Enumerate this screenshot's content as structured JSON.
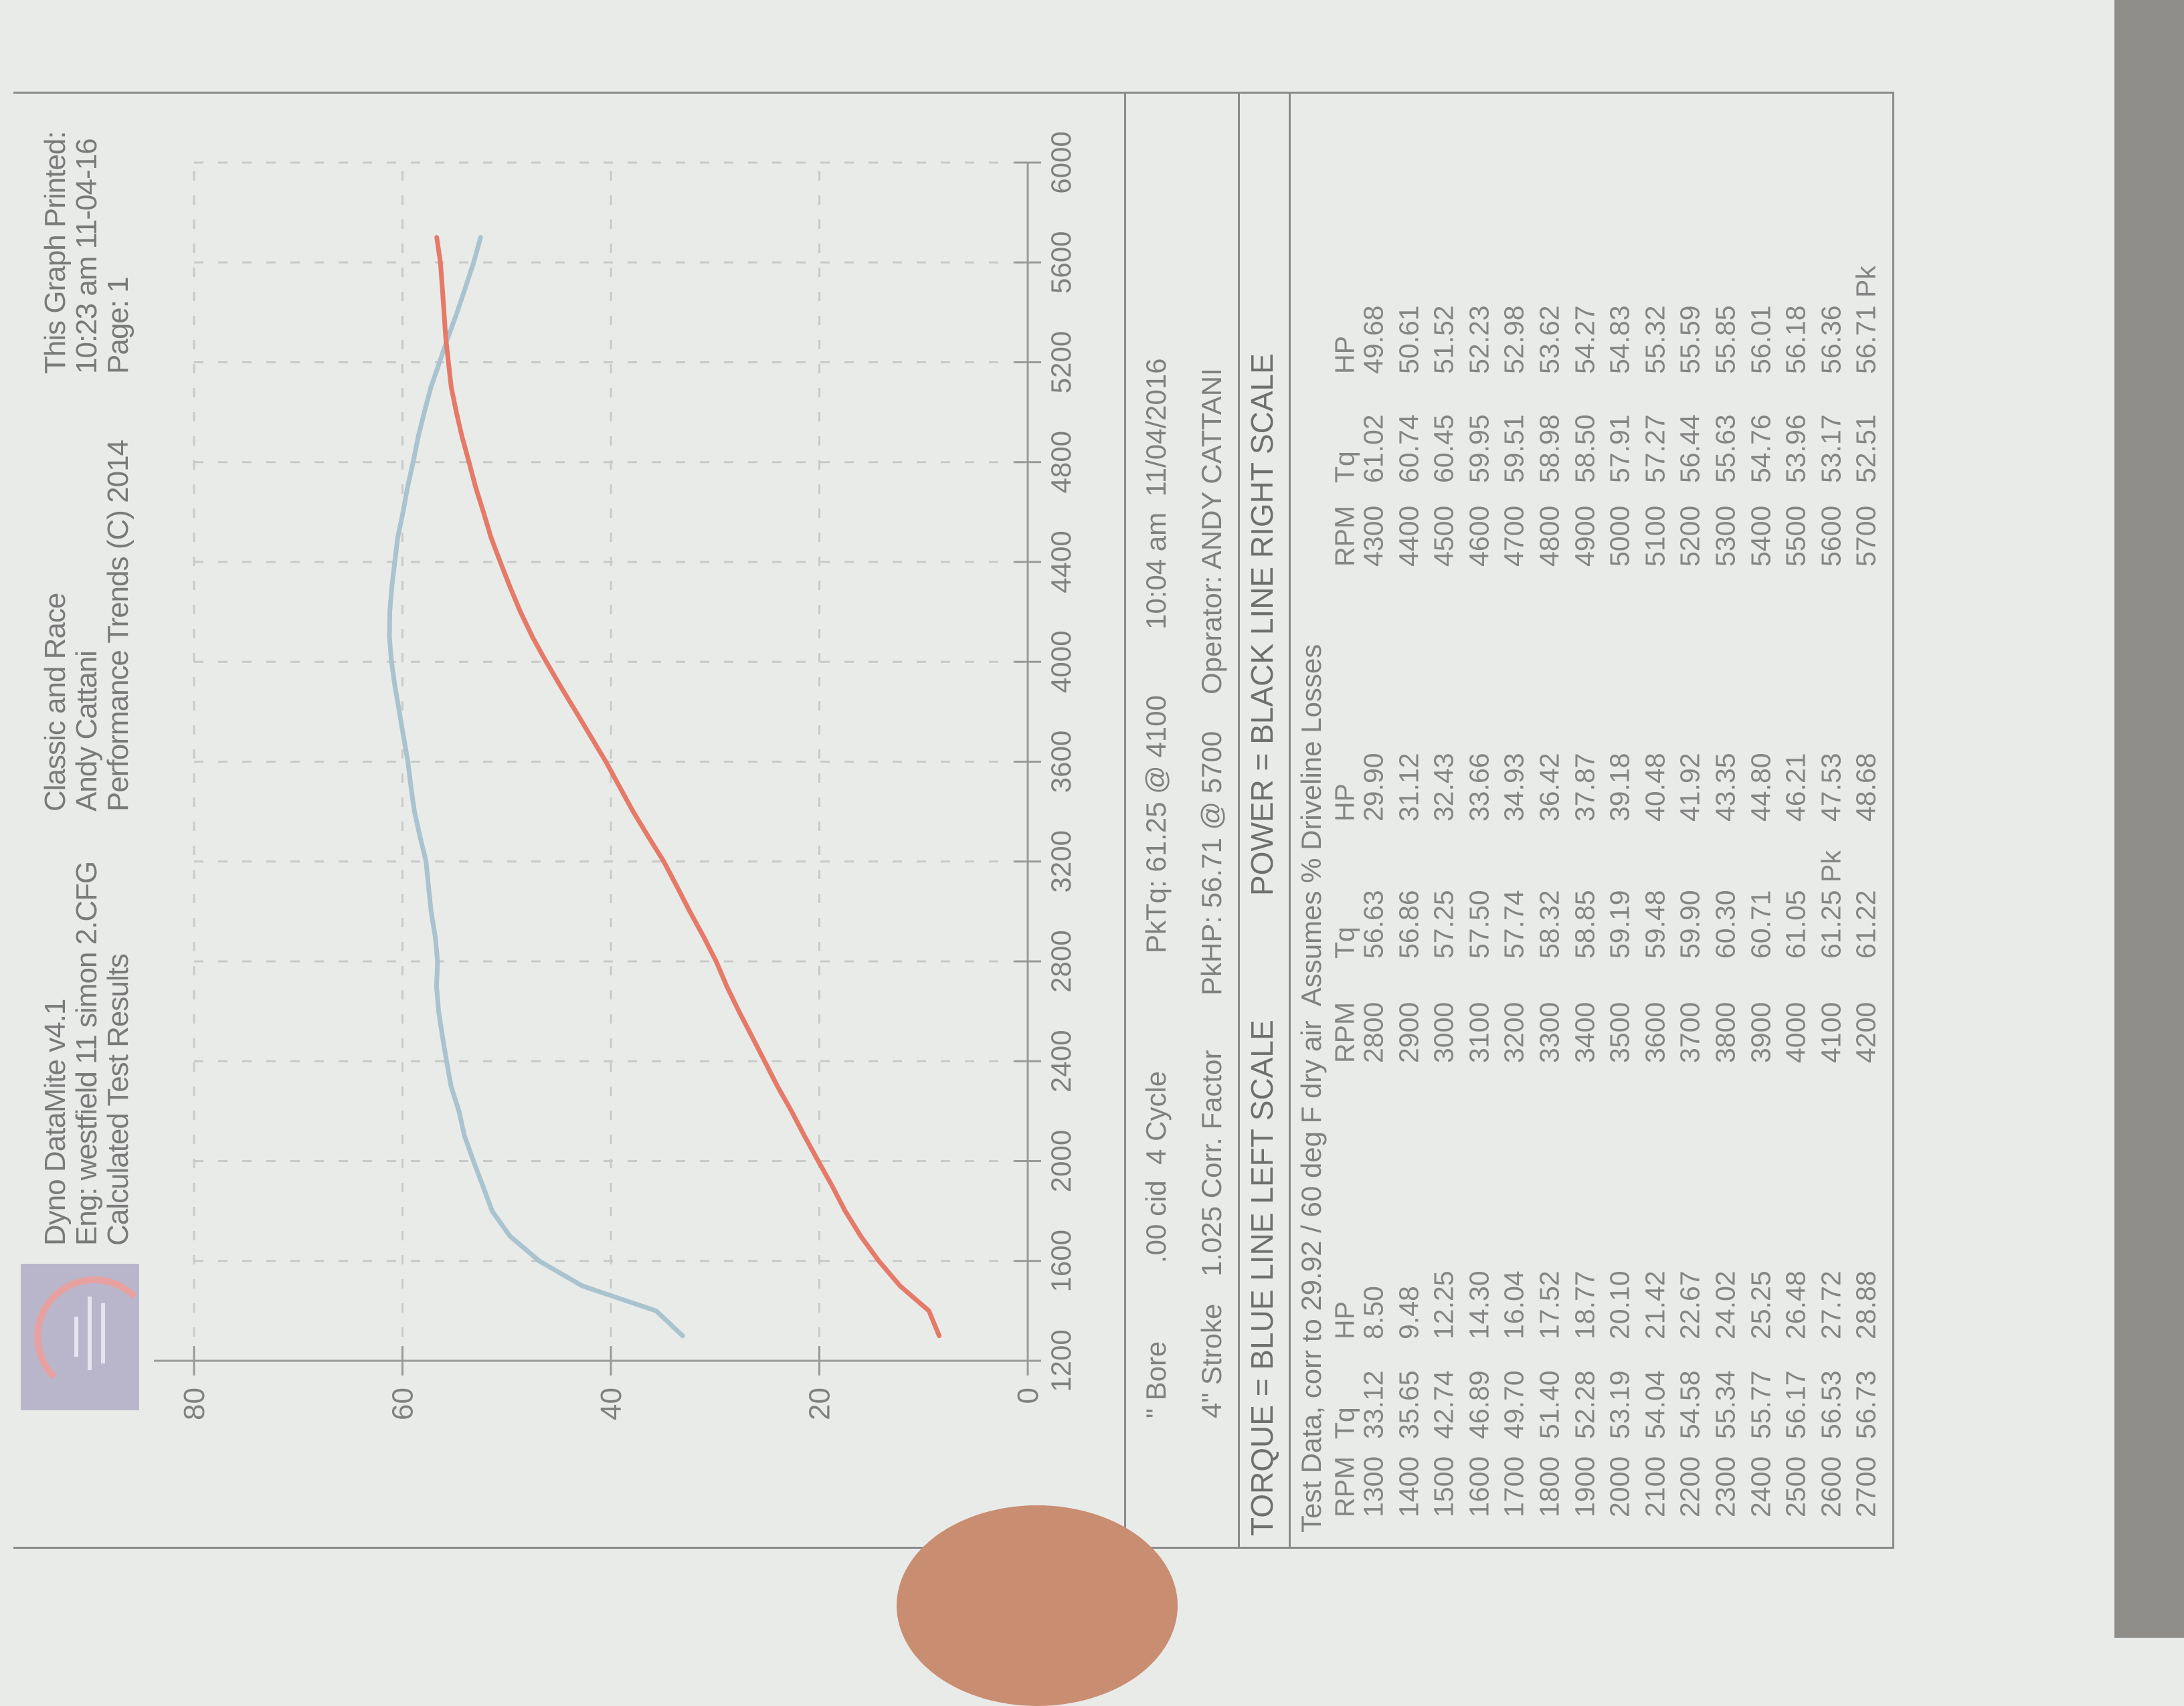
{
  "header": {
    "col1": [
      "Dyno DataMite v4.1",
      "Eng: westfield 11 simon 2.CFG",
      "Calculated Test Results"
    ],
    "col2": [
      "Classic and Race",
      "Andy Cattani",
      "Performance Trends (C) 2014"
    ],
    "col3": [
      "This Graph Printed:",
      "10:23 am 11-04-16",
      "Page: 1"
    ]
  },
  "info": {
    "bore": "\" Bore",
    "cid": ".00 cid  4 Cycle",
    "pktq": "PkTq: 61.25 @ 4100",
    "datetime": "10:04 am  11/04/2016",
    "stroke": "4\" Stroke",
    "corr": "1.025 Corr. Factor",
    "pkhp": "PkHP: 56.71 @ 5700",
    "operator": "Operator: ANDY CATTANI",
    "torque_legend": "TORQUE = BLUE LINE LEFT SCALE",
    "power_legend": "POWER = BLACK LINE RIGHT SCALE",
    "test_note": "Test Data, corr to 29.92 / 60 deg F dry air  Assumes % Driveline Losses"
  },
  "table": {
    "headers": [
      "RPM",
      "Tq",
      "HP"
    ],
    "rows": [
      [
        "1300",
        "33.12",
        "8.50",
        ""
      ],
      [
        "1400",
        "35.65",
        "9.48",
        ""
      ],
      [
        "1500",
        "42.74",
        "12.25",
        ""
      ],
      [
        "1600",
        "46.89",
        "14.30",
        ""
      ],
      [
        "1700",
        "49.70",
        "16.04",
        ""
      ],
      [
        "1800",
        "51.40",
        "17.52",
        ""
      ],
      [
        "1900",
        "52.28",
        "18.77",
        ""
      ],
      [
        "2000",
        "53.19",
        "20.10",
        ""
      ],
      [
        "2100",
        "54.04",
        "21.42",
        ""
      ],
      [
        "2200",
        "54.58",
        "22.67",
        ""
      ],
      [
        "2300",
        "55.34",
        "24.02",
        ""
      ],
      [
        "2400",
        "55.77",
        "25.25",
        ""
      ],
      [
        "2500",
        "56.17",
        "26.48",
        ""
      ],
      [
        "2600",
        "56.53",
        "27.72",
        ""
      ],
      [
        "2700",
        "56.73",
        "28.88",
        ""
      ],
      [
        "2800",
        "56.63",
        "29.90",
        ""
      ],
      [
        "2900",
        "56.86",
        "31.12",
        ""
      ],
      [
        "3000",
        "57.25",
        "32.43",
        ""
      ],
      [
        "3100",
        "57.50",
        "33.66",
        ""
      ],
      [
        "3200",
        "57.74",
        "34.93",
        ""
      ],
      [
        "3300",
        "58.32",
        "36.42",
        ""
      ],
      [
        "3400",
        "58.85",
        "37.87",
        ""
      ],
      [
        "3500",
        "59.19",
        "39.18",
        ""
      ],
      [
        "3600",
        "59.48",
        "40.48",
        ""
      ],
      [
        "3700",
        "59.90",
        "41.92",
        ""
      ],
      [
        "3800",
        "60.30",
        "43.35",
        ""
      ],
      [
        "3900",
        "60.71",
        "44.80",
        ""
      ],
      [
        "4000",
        "61.05",
        "46.21",
        ""
      ],
      [
        "4100",
        "61.25 Pk",
        "47.53",
        ""
      ],
      [
        "4200",
        "61.22",
        "48.68",
        ""
      ],
      [
        "4300",
        "61.02",
        "49.68",
        ""
      ],
      [
        "4400",
        "60.74",
        "50.61",
        ""
      ],
      [
        "4500",
        "60.45",
        "51.52",
        ""
      ],
      [
        "4600",
        "59.95",
        "52.23",
        ""
      ],
      [
        "4700",
        "59.51",
        "52.98",
        ""
      ],
      [
        "4800",
        "58.98",
        "53.62",
        ""
      ],
      [
        "4900",
        "58.50",
        "54.27",
        ""
      ],
      [
        "5000",
        "57.91",
        "54.83",
        ""
      ],
      [
        "5100",
        "57.27",
        "55.32",
        ""
      ],
      [
        "5200",
        "56.44",
        "55.59",
        ""
      ],
      [
        "5300",
        "55.63",
        "55.85",
        ""
      ],
      [
        "5400",
        "54.76",
        "56.01",
        ""
      ],
      [
        "5500",
        "53.96",
        "56.18",
        ""
      ],
      [
        "5600",
        "53.17",
        "56.36",
        ""
      ],
      [
        "5700",
        "52.51",
        "56.71 Pk",
        ""
      ]
    ]
  },
  "chart_data": {
    "type": "line",
    "xlim": [
      1200,
      6000
    ],
    "ylim": [
      0,
      80
    ],
    "x_ticks": [
      "1200",
      "1600",
      "2000",
      "2400",
      "2800",
      "3200",
      "3600",
      "4000",
      "4400",
      "4800",
      "5200",
      "5600",
      "6000"
    ],
    "y_ticks": [
      "0",
      "20",
      "40",
      "60",
      "80"
    ],
    "grid": true,
    "x": [
      1300,
      1400,
      1500,
      1600,
      1700,
      1800,
      1900,
      2000,
      2100,
      2200,
      2300,
      2400,
      2500,
      2600,
      2700,
      2800,
      2900,
      3000,
      3100,
      3200,
      3300,
      3400,
      3500,
      3600,
      3700,
      3800,
      3900,
      4000,
      4100,
      4200,
      4300,
      4400,
      4500,
      4600,
      4700,
      4800,
      4900,
      5000,
      5100,
      5200,
      5300,
      5400,
      5500,
      5600,
      5700
    ],
    "series": [
      {
        "name": "TORQUE",
        "color": "#a9c3cf",
        "values": [
          33.12,
          35.65,
          42.74,
          46.89,
          49.7,
          51.4,
          52.28,
          53.19,
          54.04,
          54.58,
          55.34,
          55.77,
          56.17,
          56.53,
          56.73,
          56.63,
          56.86,
          57.25,
          57.5,
          57.74,
          58.32,
          58.85,
          59.19,
          59.48,
          59.9,
          60.3,
          60.71,
          61.05,
          61.25,
          61.22,
          61.02,
          60.74,
          60.45,
          59.95,
          59.51,
          58.98,
          58.5,
          57.91,
          57.27,
          56.44,
          55.63,
          54.76,
          53.96,
          53.17,
          52.51
        ]
      },
      {
        "name": "POWER",
        "color": "#e57a68",
        "values": [
          8.5,
          9.48,
          12.25,
          14.3,
          16.04,
          17.52,
          18.77,
          20.1,
          21.42,
          22.67,
          24.02,
          25.25,
          26.48,
          27.72,
          28.88,
          29.9,
          31.12,
          32.43,
          33.66,
          34.93,
          36.42,
          37.87,
          39.18,
          40.48,
          41.92,
          43.35,
          44.8,
          46.21,
          47.53,
          48.68,
          49.68,
          50.61,
          51.52,
          52.23,
          52.98,
          53.62,
          54.27,
          54.83,
          55.32,
          55.59,
          55.85,
          56.01,
          56.18,
          56.36,
          56.71
        ]
      }
    ]
  }
}
